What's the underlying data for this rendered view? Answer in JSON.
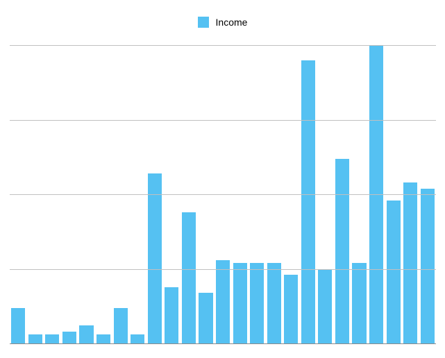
{
  "chart": {
    "type": "bar",
    "legend": {
      "label": "Income",
      "swatch_color": "#55c1f2"
    },
    "background_color": "#ffffff",
    "grid_color": "#c0c0c0",
    "baseline_color": "#8a8a8a",
    "bar_color": "#55c1f2",
    "ylim": [
      0,
      100
    ],
    "gridlines_y": [
      25,
      50,
      75,
      100
    ],
    "bar_width_ratio": 0.82,
    "values": [
      12,
      3,
      3,
      4,
      6,
      3,
      12,
      3,
      57,
      19,
      44,
      17,
      28,
      27,
      27,
      27,
      23,
      95,
      25,
      62,
      27,
      100,
      48,
      54,
      52
    ]
  }
}
